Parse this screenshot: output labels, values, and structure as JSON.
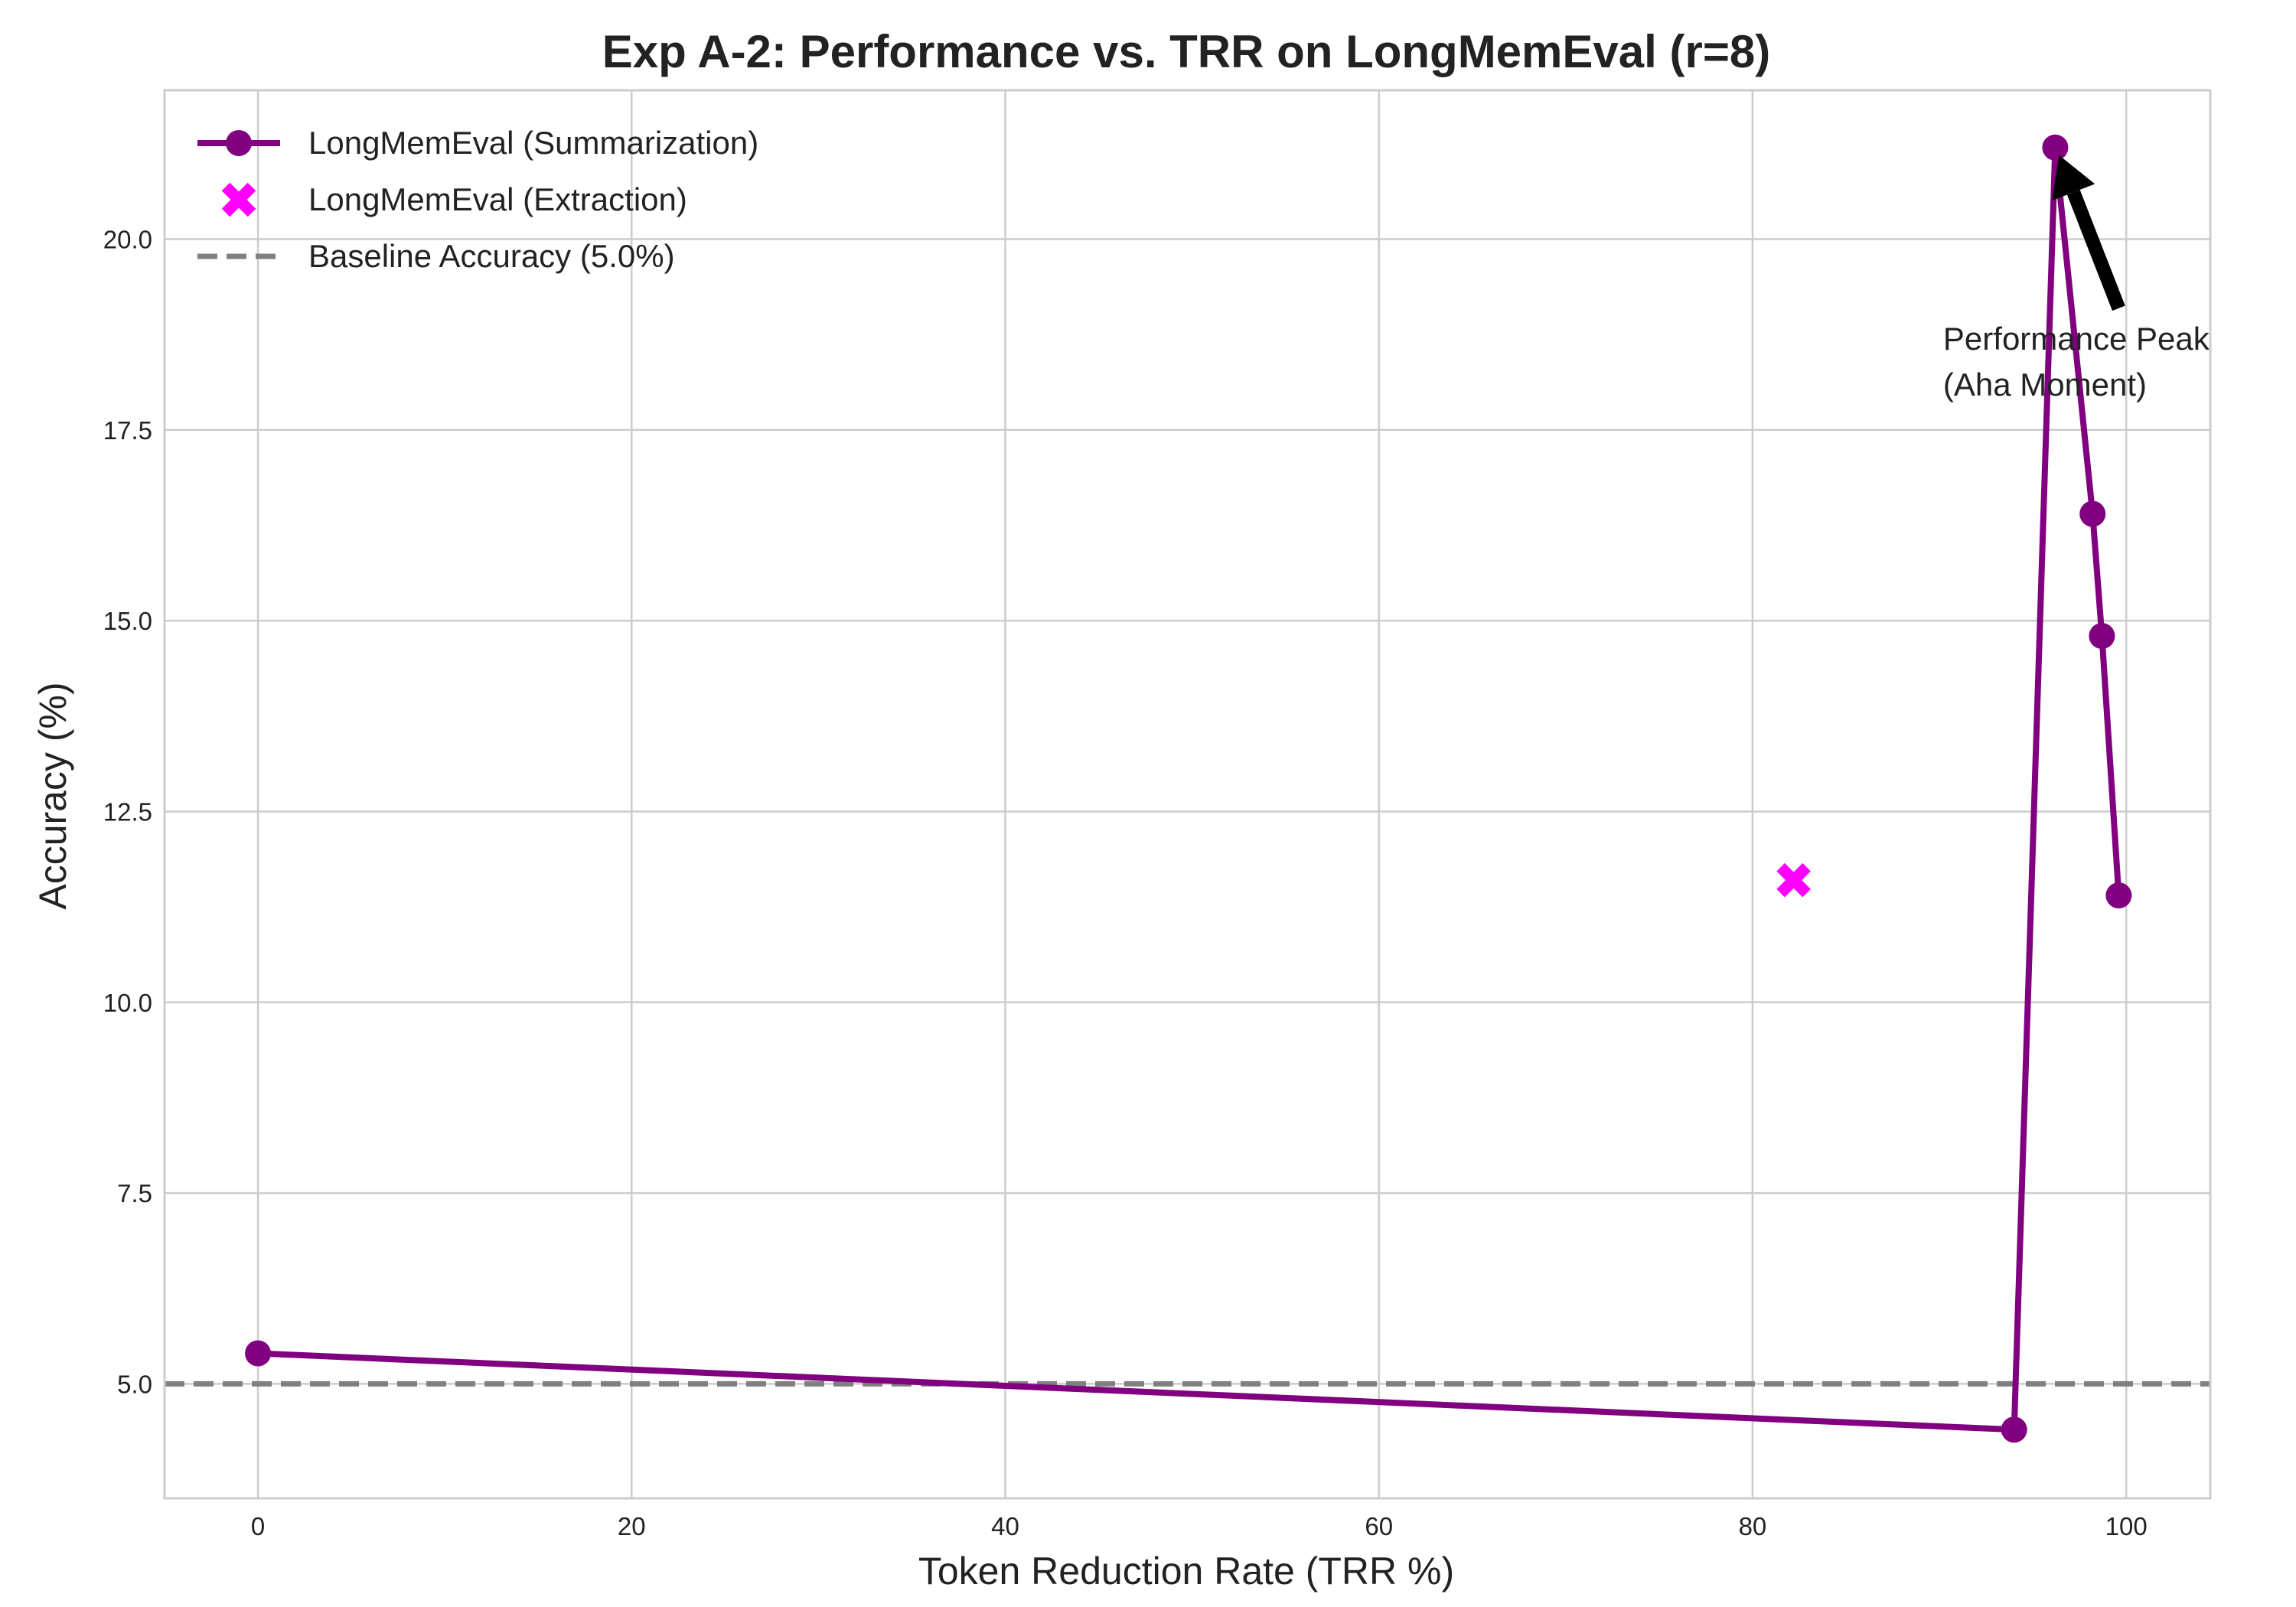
{
  "chart_data": {
    "type": "line",
    "title": "Exp A-2: Performance vs. TRR on LongMemEval (r=8)",
    "xlabel": "Token Reduction Rate (TRR %)",
    "ylabel": "Accuracy (%)",
    "xlim": [
      -5,
      104.5
    ],
    "ylim": [
      3.5,
      21.95
    ],
    "xticks": [
      0,
      20,
      40,
      60,
      80,
      100
    ],
    "xtick_labels": [
      "0",
      "20",
      "40",
      "60",
      "80",
      "100"
    ],
    "yticks": [
      5.0,
      7.5,
      10.0,
      12.5,
      15.0,
      17.5,
      20.0
    ],
    "ytick_labels": [
      "5.0",
      "7.5",
      "10.0",
      "12.5",
      "15.0",
      "17.5",
      "20.0"
    ],
    "grid": true,
    "legend_position": "top-left",
    "series": [
      {
        "name": "LongMemEval (Summarization)",
        "kind": "line-marker",
        "color": "#800080",
        "x": [
          0.0,
          94.0,
          96.2,
          98.2,
          98.7,
          99.6
        ],
        "y": [
          5.4,
          4.4,
          21.2,
          16.4,
          14.8,
          11.4
        ]
      },
      {
        "name": "LongMemEval (Extraction)",
        "kind": "scatter-x",
        "color": "#ff00ff",
        "x": [
          82.2
        ],
        "y": [
          11.6
        ]
      },
      {
        "name": "Baseline Accuracy (5.0%)",
        "kind": "hline",
        "color": "#808080",
        "y": 5.0
      }
    ],
    "annotations": [
      {
        "text_lines": [
          "Performance Peak",
          "(Aha Moment)"
        ],
        "point_x": 96.2,
        "point_y": 21.2,
        "text_x": 90.2,
        "text_y": 18.55
      }
    ]
  }
}
